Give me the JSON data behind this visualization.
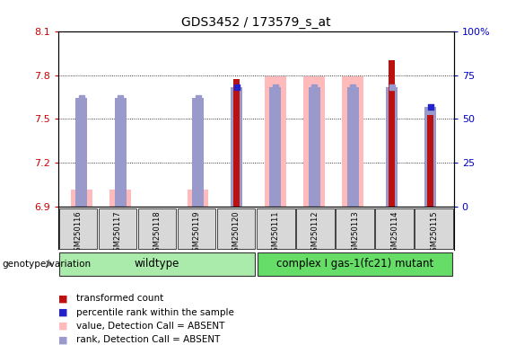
{
  "title": "GDS3452 / 173579_s_at",
  "samples": [
    "GSM250116",
    "GSM250117",
    "GSM250118",
    "GSM250119",
    "GSM250120",
    "GSM250111",
    "GSM250112",
    "GSM250113",
    "GSM250114",
    "GSM250115"
  ],
  "ylim_left": [
    6.9,
    8.1
  ],
  "ylim_right": [
    0,
    100
  ],
  "yticks_left": [
    6.9,
    7.2,
    7.5,
    7.8,
    8.1
  ],
  "yticks_right": [
    0,
    25,
    50,
    75,
    100
  ],
  "ylabel_left_color": "#cc0000",
  "ylabel_right_color": "#0000cc",
  "transformed_count": [
    null,
    null,
    6.905,
    null,
    7.77,
    null,
    null,
    null,
    7.9,
    7.53
  ],
  "percentile_rank": [
    62,
    62,
    null,
    62,
    68,
    68,
    68,
    68,
    68,
    57
  ],
  "value_absent": [
    7.02,
    7.02,
    null,
    7.02,
    null,
    7.79,
    7.79,
    7.79,
    null,
    null
  ],
  "rank_absent": [
    null,
    null,
    null,
    null,
    null,
    null,
    null,
    null,
    null,
    null
  ],
  "wildtype_count": 5,
  "group1_label": "wildtype",
  "group2_label": "complex I gas-1(fc21) mutant",
  "group1_color": "#aaeea a",
  "group2_color": "#88ee88",
  "base_value": 6.9,
  "red_bar_color": "#bb1111",
  "pink_bar_color": "#ffbbbb",
  "blue_dot_color": "#2222cc",
  "lavender_dot_color": "#9999cc",
  "tick_label_color": "#cccccc",
  "bg_color": "#ffffff",
  "genotype_label": "genotype/variation",
  "legend_items": [
    {
      "label": "transformed count",
      "color": "#bb1111"
    },
    {
      "label": "percentile rank within the sample",
      "color": "#2222cc"
    },
    {
      "label": "value, Detection Call = ABSENT",
      "color": "#ffbbbb"
    },
    {
      "label": "rank, Detection Call = ABSENT",
      "color": "#9999cc"
    }
  ]
}
